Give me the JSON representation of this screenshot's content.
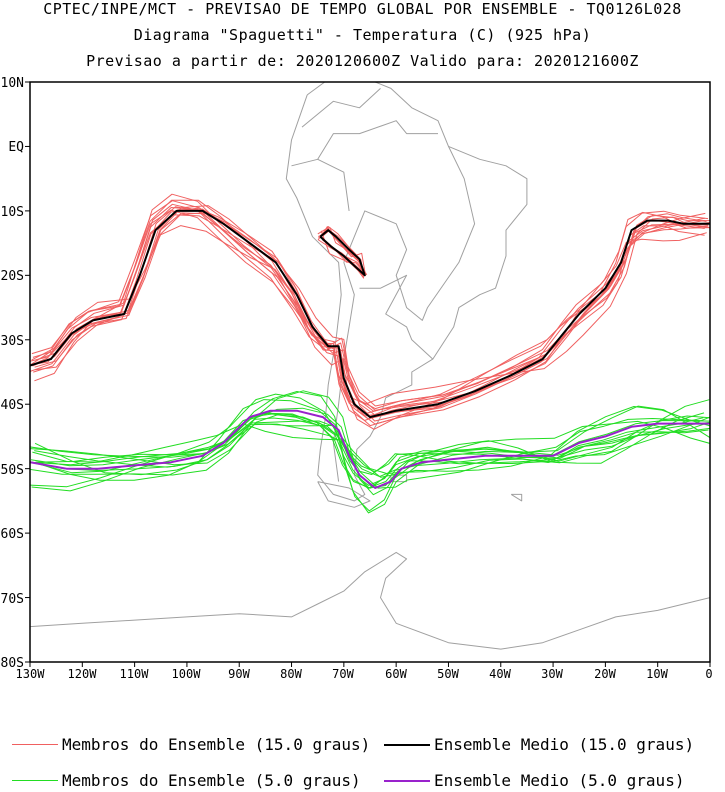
{
  "header": {
    "line1": "CPTEC/INPE/MCT - PREVISAO DE TEMPO GLOBAL POR ENSEMBLE - TQ0126L028",
    "line2": "Diagrama \"Spaguetti\" - Temperatura (C) (925 hPa)",
    "line3": "Previsao a partir de: 2020120600Z  Valido para: 2020121600Z"
  },
  "axes": {
    "lat_labels": [
      "10N",
      "EQ",
      "10S",
      "20S",
      "30S",
      "40S",
      "50S",
      "60S",
      "70S",
      "80S"
    ],
    "lon_labels": [
      "130W",
      "120W",
      "110W",
      "100W",
      "90W",
      "80W",
      "70W",
      "60W",
      "50W",
      "40W",
      "30W",
      "20W",
      "10W",
      "0"
    ]
  },
  "legend": {
    "members_15": "Membros do Ensemble (15.0 graus)",
    "mean_15": "Ensemble Medio (15.0 graus)",
    "members_5": "Membros do Ensemble (5.0 graus)",
    "mean_5": "Ensemble Medio (5.0 graus)"
  },
  "colors": {
    "members_15": "#f06060",
    "mean_15": "#000000",
    "members_5": "#22dd22",
    "mean_5": "#9922cc",
    "coast": "#a0a0a0"
  },
  "map_data": {
    "extent": {
      "lon": [
        -130,
        0
      ],
      "lat": [
        -80,
        10
      ]
    },
    "mean_15": [
      [
        -130,
        -34
      ],
      [
        -126,
        -33
      ],
      [
        -122,
        -29
      ],
      [
        -118,
        -27
      ],
      [
        -112,
        -26
      ],
      [
        -109,
        -20
      ],
      [
        -106,
        -13
      ],
      [
        -102,
        -10
      ],
      [
        -97,
        -10
      ],
      [
        -93,
        -12
      ],
      [
        -88,
        -15
      ],
      [
        -83,
        -18
      ],
      [
        -79,
        -23
      ],
      [
        -76,
        -28
      ],
      [
        -73,
        -31
      ],
      [
        -71,
        -31
      ],
      [
        -70,
        -36
      ],
      [
        -68,
        -40
      ],
      [
        -65,
        -42
      ],
      [
        -60,
        -41
      ],
      [
        -52,
        -40
      ],
      [
        -45,
        -38
      ],
      [
        -38,
        -35.5
      ],
      [
        -32,
        -33
      ],
      [
        -28,
        -29
      ],
      [
        -25,
        -26
      ],
      [
        -20,
        -22
      ],
      [
        -17,
        -18
      ],
      [
        -15,
        -13
      ],
      [
        -12,
        -11.5
      ],
      [
        -8,
        -11.5
      ],
      [
        -5,
        -12
      ],
      [
        0,
        -12
      ]
    ],
    "mean_15_island": [
      [
        -74.5,
        -14
      ],
      [
        -73,
        -13
      ],
      [
        -71.5,
        -14
      ],
      [
        -69,
        -16
      ],
      [
        -67,
        -17.5
      ],
      [
        -66,
        -20
      ],
      [
        -68,
        -18.5
      ],
      [
        -70,
        -17
      ],
      [
        -72.5,
        -15.5
      ],
      [
        -74.5,
        -14
      ]
    ],
    "mean_5": [
      [
        -130,
        -49
      ],
      [
        -123,
        -50
      ],
      [
        -117,
        -50
      ],
      [
        -110,
        -49.5
      ],
      [
        -103,
        -49
      ],
      [
        -97,
        -48
      ],
      [
        -93,
        -46
      ],
      [
        -88,
        -42
      ],
      [
        -84,
        -41
      ],
      [
        -79,
        -41
      ],
      [
        -74,
        -42
      ],
      [
        -71,
        -44
      ],
      [
        -69,
        -48
      ],
      [
        -67,
        -51
      ],
      [
        -64,
        -53
      ],
      [
        -61,
        -52
      ],
      [
        -59,
        -50
      ],
      [
        -55,
        -49
      ],
      [
        -49,
        -48.5
      ],
      [
        -43,
        -48
      ],
      [
        -37,
        -48
      ],
      [
        -30,
        -48
      ],
      [
        -25,
        -46
      ],
      [
        -20,
        -45
      ],
      [
        -15,
        -43.5
      ],
      [
        -10,
        -43
      ],
      [
        -5,
        -43
      ],
      [
        0,
        -43
      ]
    ]
  }
}
